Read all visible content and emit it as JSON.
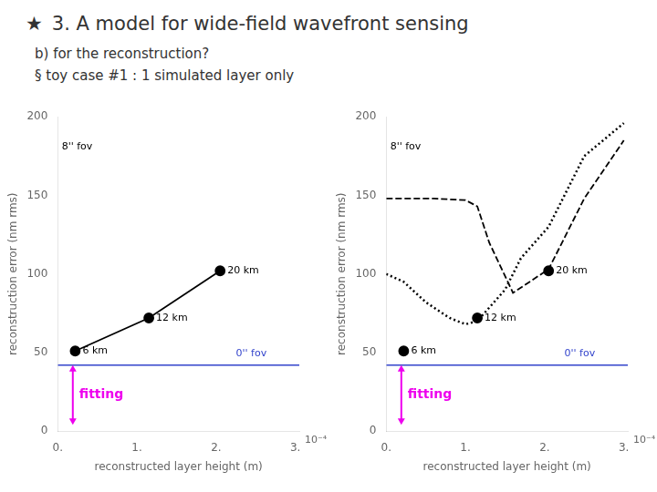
{
  "chart_data": [
    {
      "type": "line",
      "title": "3. A model for wide-field wavefront sensing",
      "title_symbol": "★",
      "subtitle": [
        "b)  for the reconstruction?",
        "§   toy case #1 : 1 simulated layer only"
      ],
      "xlabel": "reconstructed layer height (m)",
      "ylabel": "reconstruction error (nm rms)",
      "xlim": [
        0.0,
        0.000305
      ],
      "xticks": [
        {
          "value": 0.0,
          "label": "0."
        },
        {
          "value": 0.0001,
          "label": "1."
        },
        {
          "value": 0.0002,
          "label": "2."
        },
        {
          "value": 0.0003,
          "label": "3."
        }
      ],
      "x_scale_label": "10⁻⁴",
      "ylim": [
        0,
        200
      ],
      "yticks": [
        0,
        50,
        100,
        150,
        200
      ],
      "grid": false,
      "hlines": [
        {
          "y": 42,
          "color": "#3344cc"
        }
      ],
      "texts": [
        {
          "text": "0'' fov",
          "x": 0.000225,
          "y": 46,
          "color": "#3344cc"
        },
        {
          "text": "8'' fov",
          "x": 5e-06,
          "y": 178
        }
      ],
      "arrows": [
        {
          "x": 1.9e-05,
          "from": 4,
          "to": 42,
          "text": "fitting",
          "color": "#ee00ee"
        }
      ],
      "series": [
        {
          "type": "line",
          "marker": "circle",
          "line_style": "solid",
          "color": "#000000",
          "x": [
            2.2e-05,
            0.000115,
            0.000205
          ],
          "values": [
            51,
            72,
            102
          ],
          "point_labels": [
            "6 km",
            "12 km",
            "20 km"
          ]
        }
      ]
    },
    {
      "type": "line",
      "xlabel": "reconstructed layer height (m)",
      "ylabel": "reconstruction error (nm rms)",
      "xlim": [
        0.0,
        0.000305
      ],
      "xticks": [
        {
          "value": 0.0,
          "label": "0."
        },
        {
          "value": 0.0001,
          "label": "1."
        },
        {
          "value": 0.0002,
          "label": "2."
        },
        {
          "value": 0.0003,
          "label": "3."
        }
      ],
      "x_scale_label": "10⁻⁴",
      "ylim": [
        0,
        200
      ],
      "yticks": [
        0,
        50,
        100,
        150,
        200
      ],
      "grid": false,
      "hlines": [
        {
          "y": 42,
          "color": "#3344cc"
        }
      ],
      "texts": [
        {
          "text": "0'' fov",
          "x": 0.000225,
          "y": 46,
          "color": "#3344cc"
        },
        {
          "text": "8'' fov",
          "x": 5e-06,
          "y": 178
        }
      ],
      "arrows": [
        {
          "x": 1.9e-05,
          "from": 4,
          "to": 42,
          "text": "fitting",
          "color": "#ee00ee"
        }
      ],
      "series": [
        {
          "type": "scatter",
          "marker": "circle",
          "color": "#000000",
          "x": [
            2.2e-05,
            0.000115,
            0.000205
          ],
          "values": [
            51,
            72,
            102
          ],
          "point_labels": [
            "6 km",
            "12 km",
            "20 km"
          ]
        },
        {
          "type": "line",
          "marker": "none",
          "line_style": "dashed",
          "color": "#000000",
          "x": [
            0.0,
            2.2e-05,
            6e-05,
            0.0001,
            0.000115,
            0.00013,
            0.00016,
            0.000205,
            0.00025,
            0.0003
          ],
          "values": [
            148,
            148,
            148,
            147,
            143,
            120,
            88,
            103,
            148,
            185
          ]
        },
        {
          "type": "line",
          "marker": "none",
          "line_style": "dotted",
          "color": "#000000",
          "x": [
            0.0,
            2.2e-05,
            5e-05,
            8e-05,
            0.0001,
            0.000115,
            0.00015,
            0.00017,
            0.000205,
            0.00025,
            0.0003
          ],
          "values": [
            100,
            95,
            82,
            72,
            68,
            70,
            90,
            110,
            130,
            175,
            196
          ]
        }
      ]
    }
  ]
}
